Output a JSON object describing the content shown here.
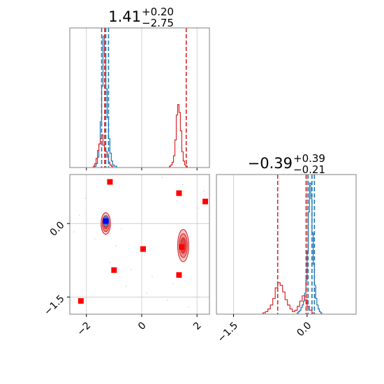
{
  "chart_data": {
    "type": "corner",
    "grid": true,
    "series": [
      {
        "name": "",
        "color": "#1f77b4"
      },
      {
        "name": "",
        "color": "#d62728"
      }
    ],
    "params": [
      {
        "title": {
          "value": "1.41",
          "plus": "+0.20",
          "minus": "−2.75"
        },
        "range": [
          -2.6,
          2.45
        ],
        "ticks": [
          -2,
          0,
          2
        ],
        "tick_labels": [
          "−2",
          "0",
          "2"
        ],
        "quantile_lines": {
          "blue": [
            -1.45,
            -1.3,
            -1.2
          ],
          "red": [
            -1.34,
            1.61
          ]
        },
        "hist_blue": {
          "start": -1.7,
          "bin": 0.05,
          "counts": [
            1,
            3,
            8,
            18,
            35,
            62,
            100,
            86,
            60,
            38,
            22,
            11,
            5,
            2,
            1,
            1
          ]
        },
        "hist_red": [
          {
            "start": -1.75,
            "bin": 0.05,
            "counts": [
              1,
              3,
              7,
              13,
              18,
              22,
              25,
              17,
              14,
              12,
              8,
              4,
              2,
              1
            ]
          },
          {
            "start": 1.0,
            "bin": 0.05,
            "counts": [
              1,
              2,
              4,
              9,
              21,
              40,
              48,
              42,
              28,
              12,
              5,
              2,
              1
            ]
          }
        ]
      },
      {
        "title": {
          "value": "−0.39",
          "plus": "+0.39",
          "minus": "−0.21"
        },
        "range": [
          -1.85,
          1.0
        ],
        "ticks": [
          -1.5,
          0.0
        ],
        "tick_labels": [
          "−1.5",
          "0.0"
        ],
        "quantile_lines": {
          "blue": [
            0.02,
            0.1,
            0.15
          ],
          "red": [
            -0.6,
            -0.02
          ]
        },
        "hist_blue": {
          "start": -0.2,
          "bin": 0.025,
          "counts": [
            1,
            2,
            3,
            5,
            7,
            10,
            16,
            26,
            48,
            78,
            100,
            88,
            62,
            38,
            22,
            12,
            7,
            4,
            2,
            1
          ]
        },
        "hist_red": [
          {
            "start": -0.9,
            "bin": 0.05,
            "counts": [
              1,
              2,
              4,
              7,
              12,
              20,
              24,
              22,
              17,
              11,
              7,
              4,
              2,
              3,
              6,
              10,
              14,
              11,
              6,
              3,
              1
            ]
          }
        ]
      }
    ],
    "contours_2d": [
      {
        "color": "#1f77b4",
        "cx": -1.3,
        "cy": 0.05,
        "sx": 0.1,
        "sy": 0.1
      },
      {
        "color": "#d62728",
        "cx": -1.3,
        "cy": 0.0,
        "sx": 0.17,
        "sy": 0.22
      },
      {
        "color": "#d62728",
        "cx": 1.5,
        "cy": -0.45,
        "sx": 0.2,
        "sy": 0.33
      }
    ],
    "points_red": [
      [
        -1.15,
        0.85
      ],
      [
        1.35,
        0.62
      ],
      [
        2.3,
        0.45
      ],
      [
        0.05,
        -0.52
      ],
      [
        1.45,
        -0.48
      ],
      [
        -1.0,
        -0.95
      ],
      [
        1.35,
        -1.05
      ],
      [
        -2.2,
        -1.58
      ]
    ],
    "point_blue": [
      -1.3,
      0.05
    ],
    "ylabels_2d": {
      "ticks": [
        0.0,
        -1.5
      ],
      "labels": [
        "0.0",
        "−1.5"
      ]
    }
  }
}
